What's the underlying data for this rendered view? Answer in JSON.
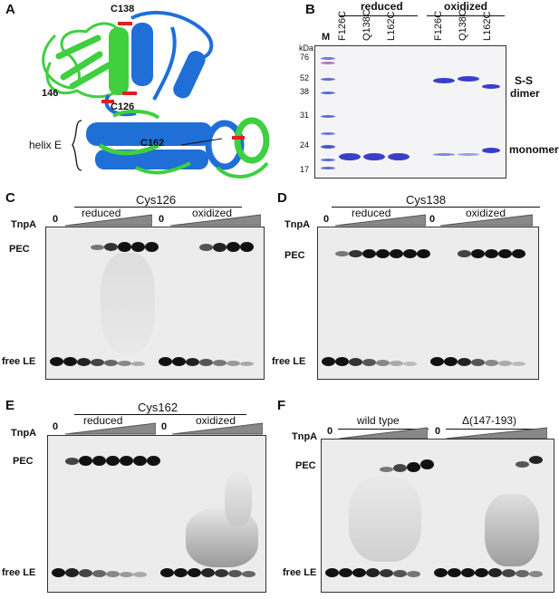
{
  "panels": {
    "A": {
      "label": "A",
      "residues": [
        "C138",
        "C126",
        "146",
        "C162"
      ],
      "helix_label": "helix E"
    },
    "B": {
      "label": "B",
      "marker_lane": "M",
      "unit": "kDa",
      "ladder": [
        "76",
        "52",
        "38",
        "31",
        "24",
        "17"
      ],
      "group_reduced": "reduced",
      "group_oxidized": "oxidized",
      "lanes": [
        "F126C",
        "Q138C",
        "L162C",
        "F126C",
        "Q138C",
        "L162C"
      ],
      "dimer_label_1": "S-S",
      "dimer_label_2": "dimer",
      "monomer_label": "monomer"
    },
    "C": {
      "label": "C",
      "title": "Cys126",
      "reduced": "reduced",
      "oxidized": "oxidized",
      "protein": "TnpA",
      "zero": "0",
      "pec": "PEC",
      "free": "free LE"
    },
    "D": {
      "label": "D",
      "title": "Cys138",
      "reduced": "reduced",
      "oxidized": "oxidized",
      "protein": "TnpA",
      "zero": "0",
      "pec": "PEC",
      "free": "free LE"
    },
    "E": {
      "label": "E",
      "title": "Cys162",
      "reduced": "reduced",
      "oxidized": "oxidized",
      "protein": "TnpA",
      "zero": "0",
      "pec": "PEC",
      "free": "free LE"
    },
    "F": {
      "label": "F",
      "wildtype": "wild type",
      "deletion": "Δ(147-193)",
      "protein": "TnpA",
      "zero": "0",
      "pec": "PEC",
      "free": "free LE"
    }
  },
  "colors": {
    "helix_blue": "#1f6fd6",
    "helix_green": "#3fcf3f",
    "disulfide_red": "#e02020",
    "gel_band": "#111111",
    "marker_blue": "#5a6fd0",
    "coomassie_band": "#3840c8"
  }
}
